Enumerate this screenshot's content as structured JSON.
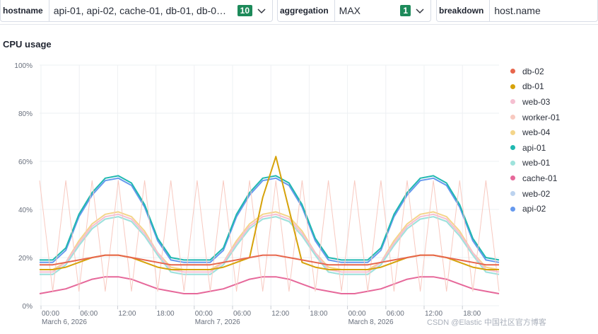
{
  "filters": {
    "hostname": {
      "label": "hostname",
      "value": "api-01, api-02, cache-01, db-01, db-0…",
      "count": "10"
    },
    "aggregation": {
      "label": "aggregation",
      "value": "MAX",
      "count": "1"
    },
    "breakdown": {
      "label": "breakdown",
      "value": "host.name"
    }
  },
  "icons": {
    "dropdown": "chevron-down-icon"
  },
  "watermark": "CSDN @Elastic 中国社区官方博客",
  "chart_data": {
    "type": "line",
    "title": "CPU usage",
    "xlabel": "",
    "ylabel": "",
    "ylim": [
      0,
      100
    ],
    "yticks": [
      "0%",
      "20%",
      "40%",
      "60%",
      "80%",
      "100%"
    ],
    "xticks": [
      "00:00",
      "06:00",
      "12:00",
      "18:00",
      "00:00",
      "06:00",
      "12:00",
      "18:00",
      "00:00",
      "06:00",
      "12:00",
      "18:00"
    ],
    "xdates": [
      "March 6, 2026",
      "March 7, 2026",
      "March 8, 2026"
    ],
    "grid": true,
    "legend_position": "right",
    "series": [
      {
        "name": "db-02",
        "color": "#e7664c",
        "values": [
          17,
          17,
          18,
          19,
          20,
          21,
          21,
          20,
          19,
          18,
          17,
          17,
          17,
          17,
          18,
          19,
          20,
          21,
          21,
          20,
          19,
          18,
          17,
          17,
          17,
          17,
          18,
          19,
          20,
          21,
          21,
          20,
          19,
          18,
          17,
          17
        ]
      },
      {
        "name": "db-01",
        "color": "#d6a20a",
        "values": [
          15,
          15,
          16,
          18,
          20,
          21,
          21,
          20,
          18,
          16,
          15,
          15,
          15,
          15,
          16,
          18,
          20,
          45,
          62,
          40,
          18,
          16,
          15,
          15,
          15,
          15,
          16,
          18,
          20,
          21,
          21,
          20,
          18,
          16,
          15,
          15
        ]
      },
      {
        "name": "web-03",
        "color": "#f5bfd1",
        "values": [
          14,
          14,
          18,
          26,
          33,
          37,
          38,
          36,
          30,
          22,
          15,
          14,
          14,
          14,
          18,
          26,
          33,
          37,
          38,
          36,
          30,
          22,
          15,
          14,
          14,
          14,
          18,
          26,
          33,
          37,
          38,
          36,
          30,
          22,
          15,
          14
        ]
      },
      {
        "name": "worker-01",
        "color": "#f8c9c0",
        "values": [
          52,
          6,
          52,
          6,
          52,
          6,
          52,
          6,
          52,
          6,
          52,
          6,
          52,
          6,
          52,
          6,
          52,
          6,
          52,
          6,
          52,
          6,
          52,
          6,
          52,
          6,
          52,
          6,
          52,
          6,
          52,
          6,
          52,
          6,
          52,
          6
        ]
      },
      {
        "name": "web-04",
        "color": "#f4d58a",
        "values": [
          15,
          15,
          18,
          27,
          34,
          38,
          39,
          37,
          31,
          22,
          16,
          15,
          15,
          15,
          18,
          27,
          34,
          38,
          39,
          37,
          31,
          22,
          16,
          15,
          15,
          15,
          18,
          27,
          34,
          38,
          39,
          37,
          31,
          22,
          16,
          15
        ]
      },
      {
        "name": "api-01",
        "color": "#20b8b0",
        "values": [
          19,
          19,
          24,
          38,
          47,
          53,
          54,
          51,
          42,
          28,
          20,
          19,
          19,
          19,
          24,
          38,
          47,
          53,
          54,
          51,
          42,
          28,
          20,
          19,
          19,
          19,
          24,
          38,
          47,
          53,
          54,
          51,
          42,
          28,
          20,
          19
        ]
      },
      {
        "name": "web-01",
        "color": "#9ee3dc",
        "values": [
          13,
          13,
          17,
          25,
          32,
          36,
          37,
          35,
          29,
          21,
          14,
          13,
          13,
          13,
          17,
          25,
          32,
          36,
          37,
          35,
          29,
          21,
          14,
          13,
          13,
          13,
          17,
          25,
          32,
          36,
          37,
          35,
          29,
          21,
          14,
          13
        ]
      },
      {
        "name": "cache-01",
        "color": "#e6689a",
        "values": [
          5,
          6,
          7,
          9,
          11,
          12,
          12,
          11,
          9,
          7,
          6,
          5,
          5,
          6,
          7,
          9,
          11,
          12,
          12,
          11,
          9,
          7,
          6,
          5,
          5,
          6,
          7,
          9,
          11,
          12,
          12,
          11,
          9,
          7,
          6,
          5
        ]
      },
      {
        "name": "web-02",
        "color": "#bcd3ef",
        "values": [
          13,
          13,
          17,
          25,
          32,
          36,
          37,
          35,
          29,
          21,
          14,
          13,
          13,
          13,
          17,
          25,
          32,
          36,
          37,
          35,
          29,
          21,
          14,
          13,
          13,
          13,
          17,
          25,
          32,
          36,
          37,
          35,
          29,
          21,
          14,
          13
        ]
      },
      {
        "name": "api-02",
        "color": "#6699ee",
        "values": [
          18,
          18,
          23,
          37,
          46,
          52,
          53,
          50,
          41,
          27,
          19,
          18,
          18,
          18,
          23,
          37,
          46,
          52,
          53,
          50,
          41,
          27,
          19,
          18,
          18,
          18,
          23,
          37,
          46,
          52,
          53,
          50,
          41,
          27,
          19,
          18
        ]
      }
    ]
  }
}
